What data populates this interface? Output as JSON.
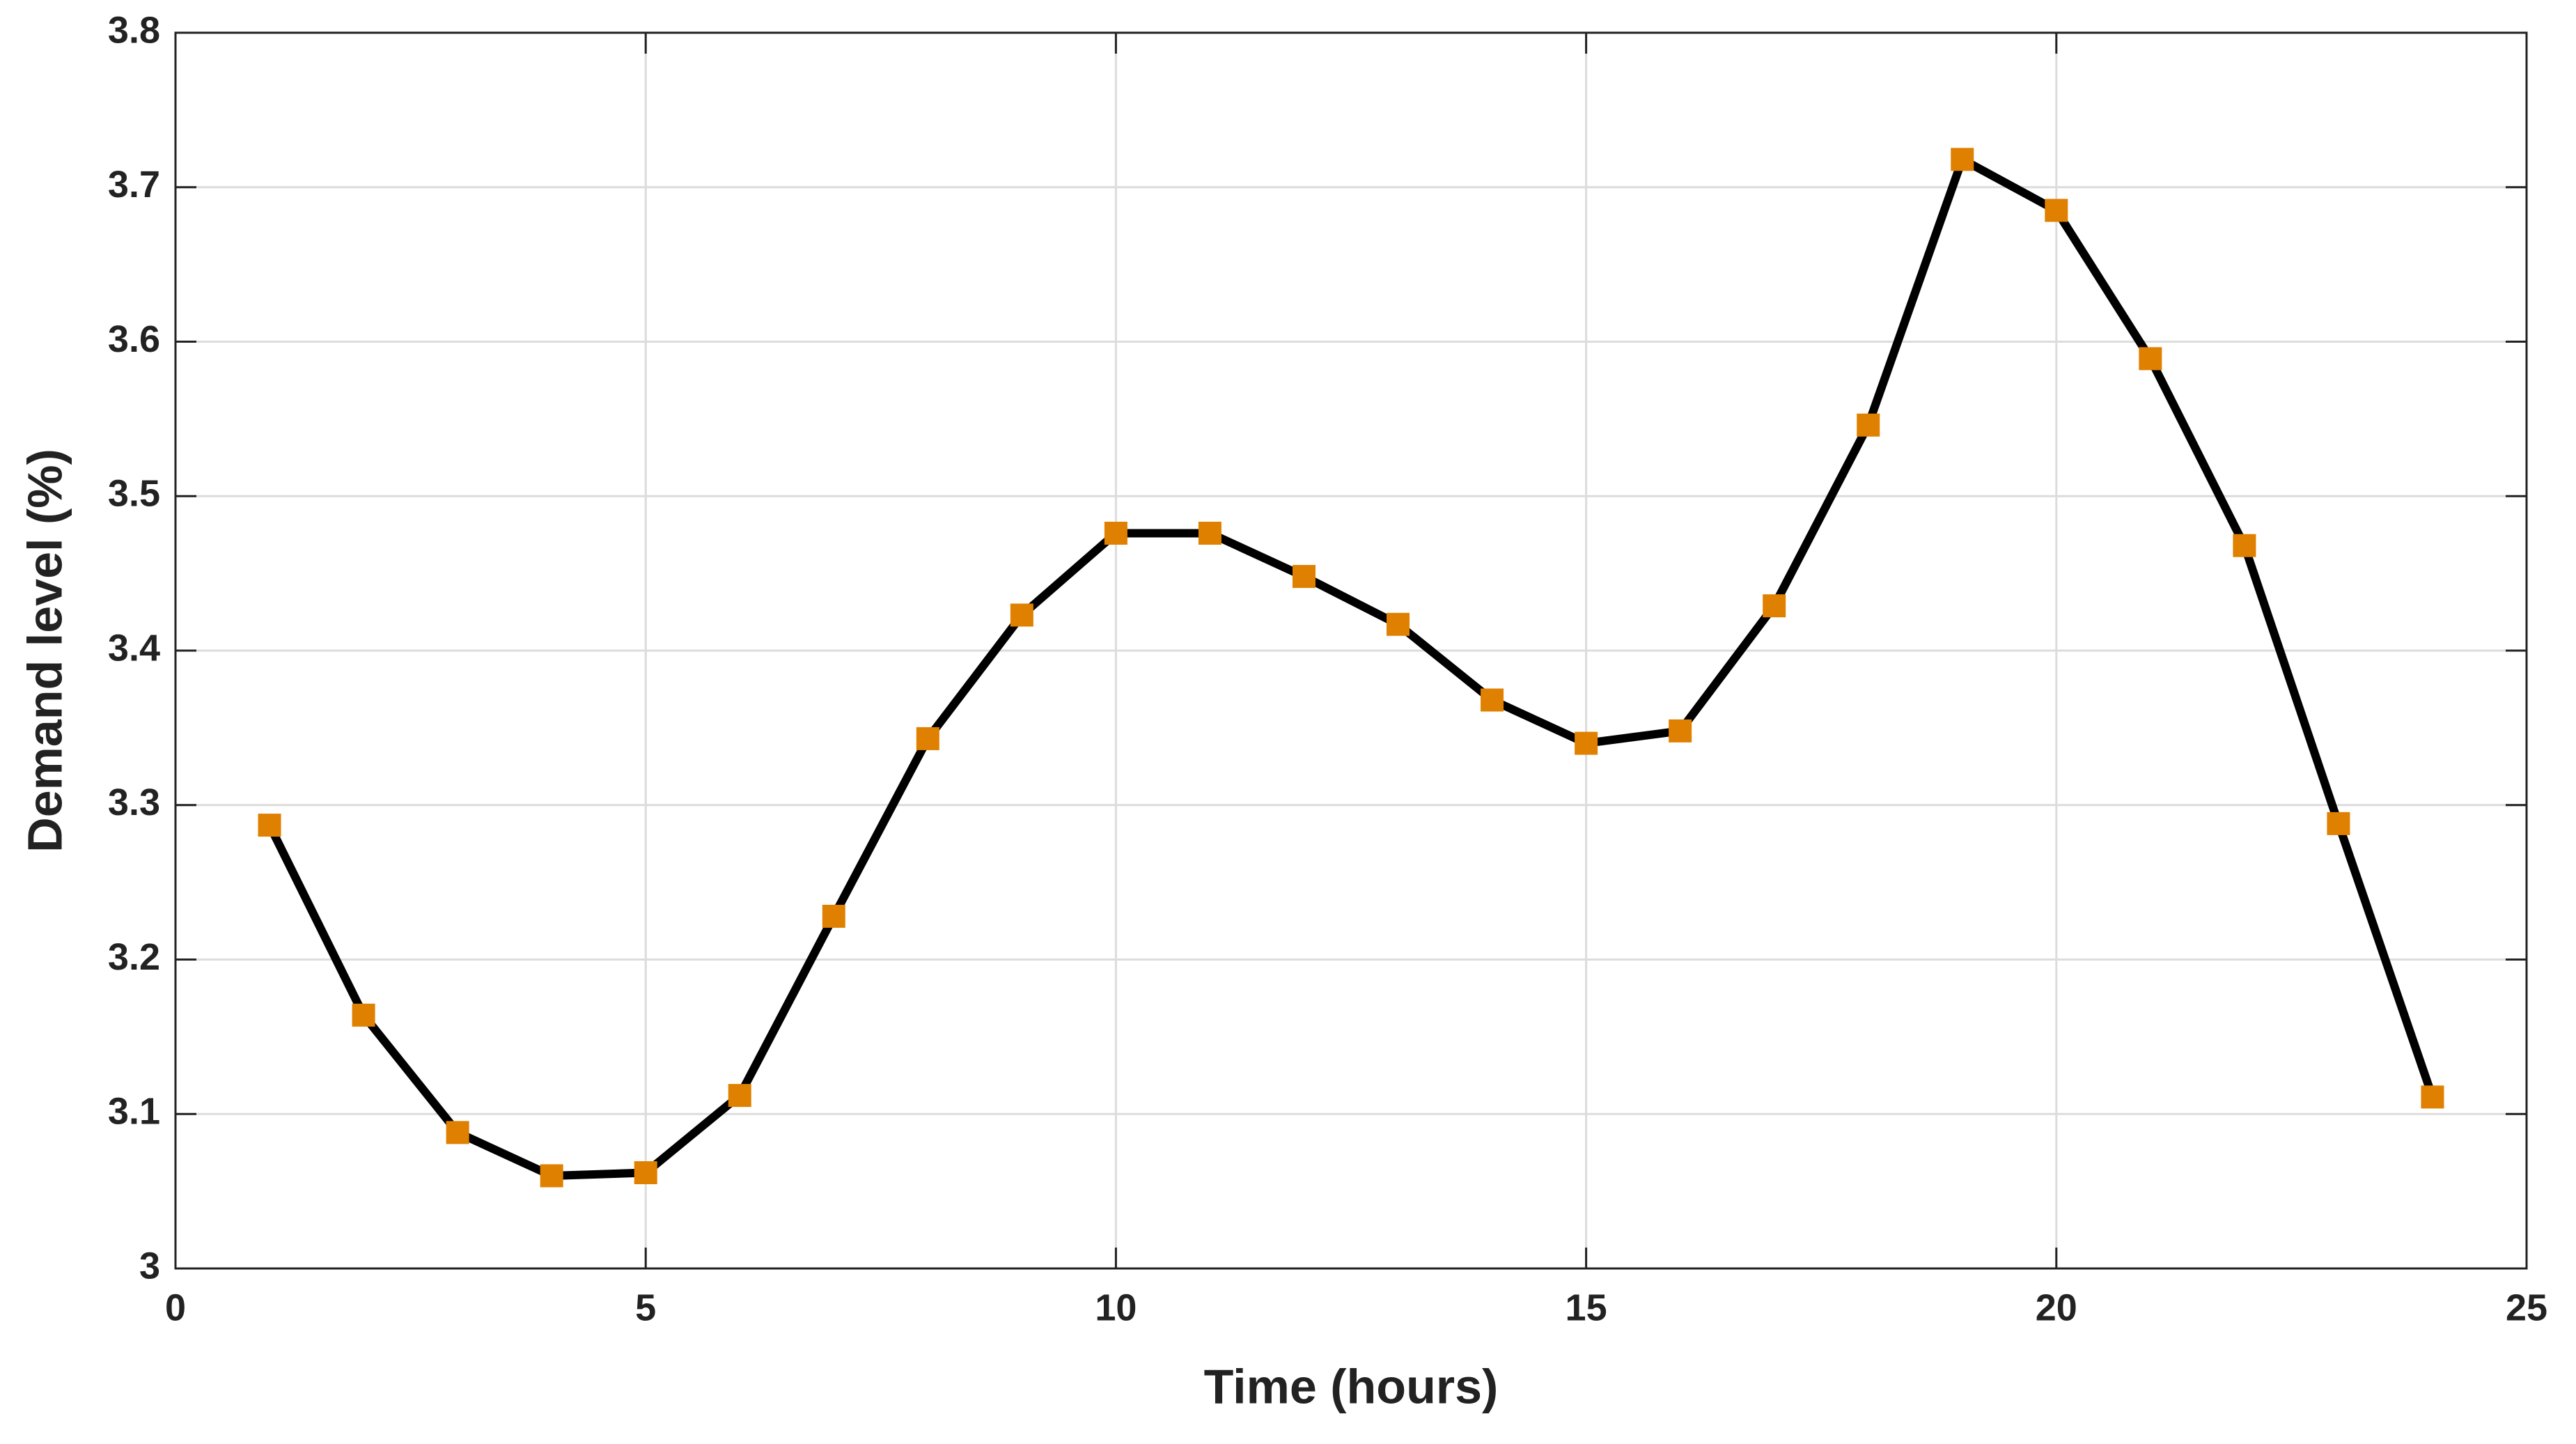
{
  "chart_data": {
    "type": "line",
    "xlabel": "Time (hours)",
    "ylabel": "Demand level (%)",
    "x": [
      1,
      2,
      3,
      4,
      5,
      6,
      7,
      8,
      9,
      10,
      11,
      12,
      13,
      14,
      15,
      16,
      17,
      18,
      19,
      20,
      21,
      22,
      23,
      24
    ],
    "series": [
      {
        "name": "Demand level",
        "color": "#000000",
        "marker_color": "#e08000",
        "values": [
          3.287,
          3.164,
          3.088,
          3.06,
          3.062,
          3.112,
          3.228,
          3.343,
          3.423,
          3.476,
          3.476,
          3.448,
          3.417,
          3.368,
          3.34,
          3.348,
          3.429,
          3.546,
          3.718,
          3.685,
          3.589,
          3.468,
          3.288,
          3.111
        ]
      }
    ],
    "xlim": [
      0,
      25
    ],
    "xticks": [
      0,
      5,
      10,
      15,
      20,
      25
    ],
    "ylim": [
      3,
      3.8
    ],
    "yticks": [
      3,
      3.1,
      3.2,
      3.3,
      3.4,
      3.5,
      3.6,
      3.7,
      3.8
    ],
    "grid": true
  }
}
